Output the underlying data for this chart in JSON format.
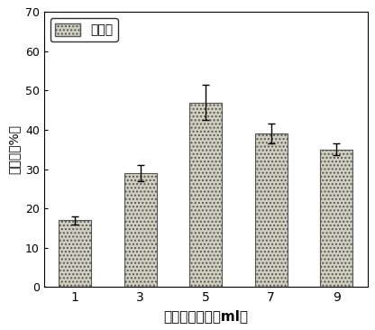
{
  "categories": [
    "1",
    "3",
    "5",
    "7",
    "9"
  ],
  "values": [
    17.0,
    29.0,
    47.0,
    39.0,
    35.0
  ],
  "errors": [
    1.0,
    2.0,
    4.5,
    2.5,
    1.5
  ],
  "bar_facecolor": "#d0d0c0",
  "bar_hatch": "....",
  "bar_edgecolor": "#555555",
  "ylabel": "去除率（%）",
  "xlabel": "絮凝剂投加量（ml）",
  "ylim": [
    0,
    70
  ],
  "yticks": [
    0,
    10,
    20,
    30,
    40,
    50,
    60,
    70
  ],
  "legend_label": "去除率",
  "fig_bg_color": "#ffffff",
  "plot_bg_color": "#ffffff",
  "bar_width": 0.5
}
